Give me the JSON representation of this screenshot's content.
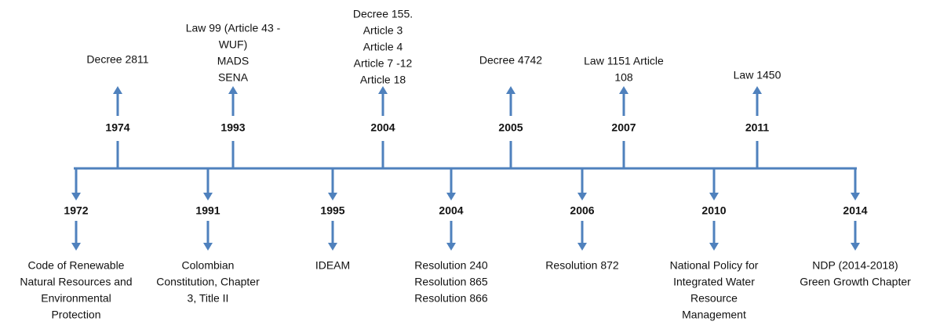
{
  "above": [
    {
      "year": "1974",
      "lines": [
        "Decree 2811"
      ]
    },
    {
      "year": "1993",
      "lines": [
        "Law 99 (Article 43 -",
        "WUF)",
        "MADS",
        "SENA"
      ]
    },
    {
      "year": "2004",
      "lines": [
        "Decree 155.",
        "Article 3",
        "Article 4",
        "Article 7 -12",
        "Article 18"
      ]
    },
    {
      "year": "2005",
      "lines": [
        "Decree 4742"
      ]
    },
    {
      "year": "2007",
      "lines": [
        "Law 1151 Article",
        "108"
      ]
    },
    {
      "year": "2011",
      "lines": [
        "Law 1450"
      ]
    }
  ],
  "below": [
    {
      "year": "1972",
      "lines": [
        "Code of Renewable",
        "Natural Resources and",
        "Environmental",
        "Protection"
      ]
    },
    {
      "year": "1991",
      "lines": [
        "Colombian",
        "Constitution, Chapter",
        "3, Title II"
      ]
    },
    {
      "year": "1995",
      "lines": [
        "IDEAM"
      ]
    },
    {
      "year": "2004",
      "lines": [
        "Resolution 240",
        "Resolution 865",
        "Resolution 866"
      ]
    },
    {
      "year": "2006",
      "lines": [
        "Resolution 872"
      ]
    },
    {
      "year": "2010",
      "lines": [
        "National Policy for",
        "Integrated Water",
        "Resource",
        "Management"
      ]
    },
    {
      "year": "2014",
      "lines": [
        "NDP (2014-2018)",
        "Green Growth Chapter"
      ]
    }
  ]
}
